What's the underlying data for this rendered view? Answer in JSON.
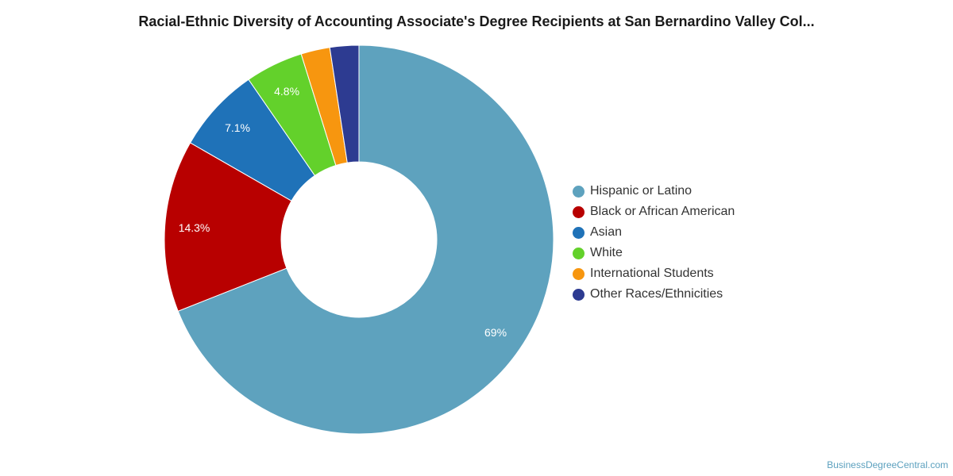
{
  "chart_data": {
    "type": "pie",
    "variant": "donut",
    "title": "Racial-Ethnic Diversity of Accounting Associate's Degree Recipients at San Bernardino Valley Col...",
    "slices": [
      {
        "label": "Hispanic or Latino",
        "value": 69.0,
        "display": "69%",
        "color": "#5ea2be"
      },
      {
        "label": "Black or African American",
        "value": 14.3,
        "display": "14.3%",
        "color": "#b80000"
      },
      {
        "label": "Asian",
        "value": 7.1,
        "display": "7.1%",
        "color": "#1f72b8"
      },
      {
        "label": "White",
        "value": 4.8,
        "display": "4.8%",
        "color": "#63d12b"
      },
      {
        "label": "International Students",
        "value": 2.4,
        "display": "",
        "color": "#f7960f"
      },
      {
        "label": "Other Races/Ethnicities",
        "value": 2.4,
        "display": "",
        "color": "#2d3b91"
      }
    ],
    "legend_position": "right"
  },
  "credit": "BusinessDegreeCentral.com"
}
